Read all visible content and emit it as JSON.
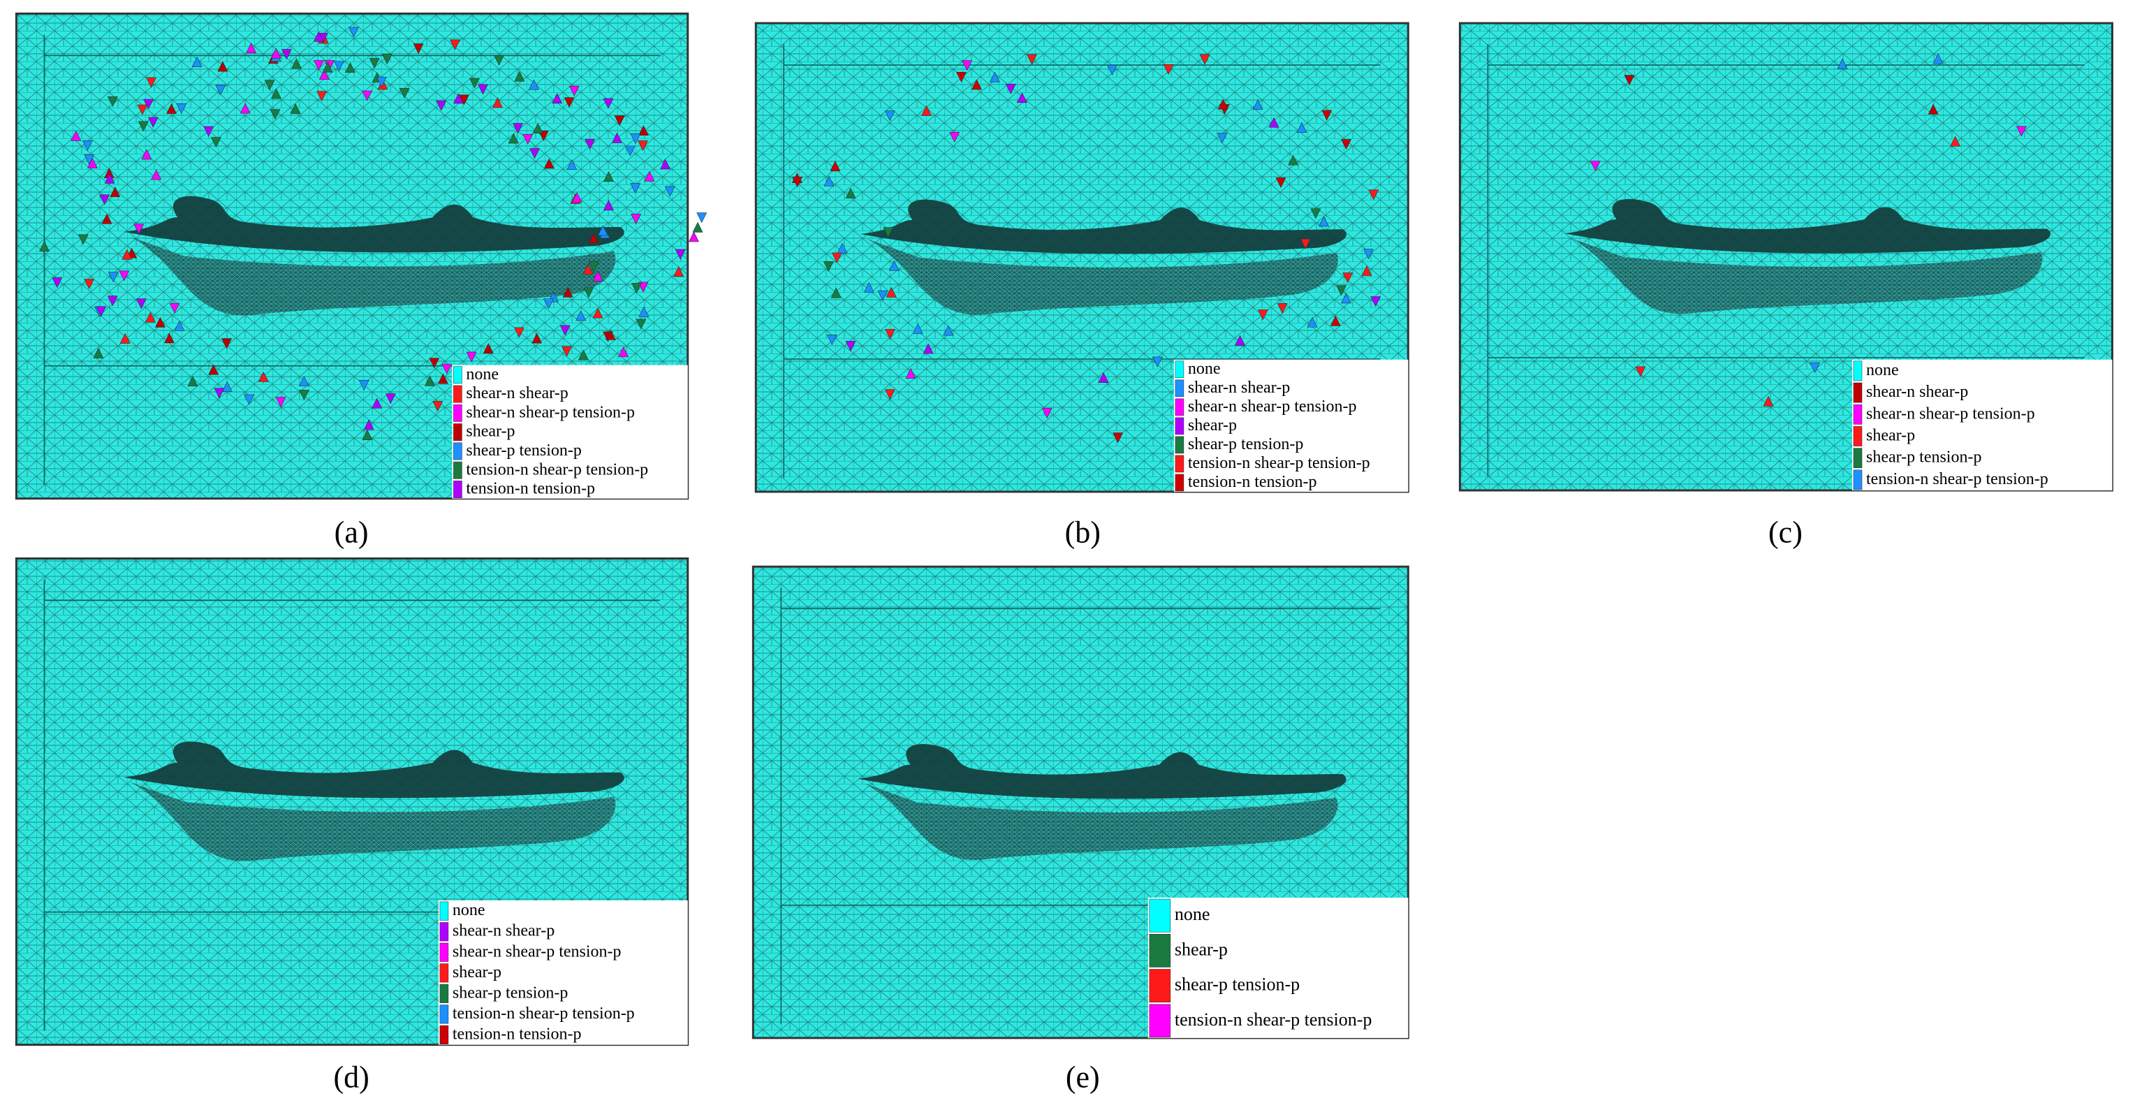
{
  "panels": [
    {
      "label": "(a)",
      "legend": [
        {
          "name": "none",
          "color": "#00ffff"
        },
        {
          "name": "shear-n shear-p",
          "color": "#ff1a1a"
        },
        {
          "name": "shear-n shear-p tension-p",
          "color": "#ff00ff"
        },
        {
          "name": "shear-p",
          "color": "#c00000"
        },
        {
          "name": "shear-p tension-p",
          "color": "#1e8fff"
        },
        {
          "name": "tension-n shear-p tension-p",
          "color": "#1a7a40"
        },
        {
          "name": "tension-n tension-p",
          "color": "#b000ff"
        }
      ]
    },
    {
      "label": "(b)",
      "legend": [
        {
          "name": "none",
          "color": "#00ffff"
        },
        {
          "name": "shear-n shear-p",
          "color": "#1e8fff"
        },
        {
          "name": "shear-n shear-p tension-p",
          "color": "#ff00ff"
        },
        {
          "name": "shear-p",
          "color": "#b000ff"
        },
        {
          "name": "shear-p tension-p",
          "color": "#1a7a40"
        },
        {
          "name": "tension-n shear-p tension-p",
          "color": "#ff1a1a"
        },
        {
          "name": "tension-n tension-p",
          "color": "#d00000"
        }
      ]
    },
    {
      "label": "(c)",
      "legend": [
        {
          "name": "none",
          "color": "#00ffff"
        },
        {
          "name": "shear-n shear-p",
          "color": "#c00000"
        },
        {
          "name": "shear-n shear-p tension-p",
          "color": "#ff00ff"
        },
        {
          "name": "shear-p",
          "color": "#ff1a1a"
        },
        {
          "name": "shear-p tension-p",
          "color": "#1a7a40"
        },
        {
          "name": "tension-n shear-p tension-p",
          "color": "#1e8fff"
        }
      ]
    },
    {
      "label": "(d)",
      "legend": [
        {
          "name": "none",
          "color": "#00ffff"
        },
        {
          "name": "shear-n shear-p",
          "color": "#b000ff"
        },
        {
          "name": "shear-n shear-p tension-p",
          "color": "#ff00ff"
        },
        {
          "name": "shear-p",
          "color": "#ff1a1a"
        },
        {
          "name": "shear-p tension-p",
          "color": "#1a7a40"
        },
        {
          "name": "tension-n shear-p tension-p",
          "color": "#1e8fff"
        },
        {
          "name": "tension-n tension-p",
          "color": "#d00000"
        }
      ]
    },
    {
      "label": "(e)",
      "legend": [
        {
          "name": "none",
          "color": "#00ffff"
        },
        {
          "name": "shear-p",
          "color": "#1a7a40"
        },
        {
          "name": "shear-p tension-p",
          "color": "#ff1a1a"
        },
        {
          "name": "tension-n shear-p tension-p",
          "color": "#ff00ff"
        }
      ]
    }
  ]
}
